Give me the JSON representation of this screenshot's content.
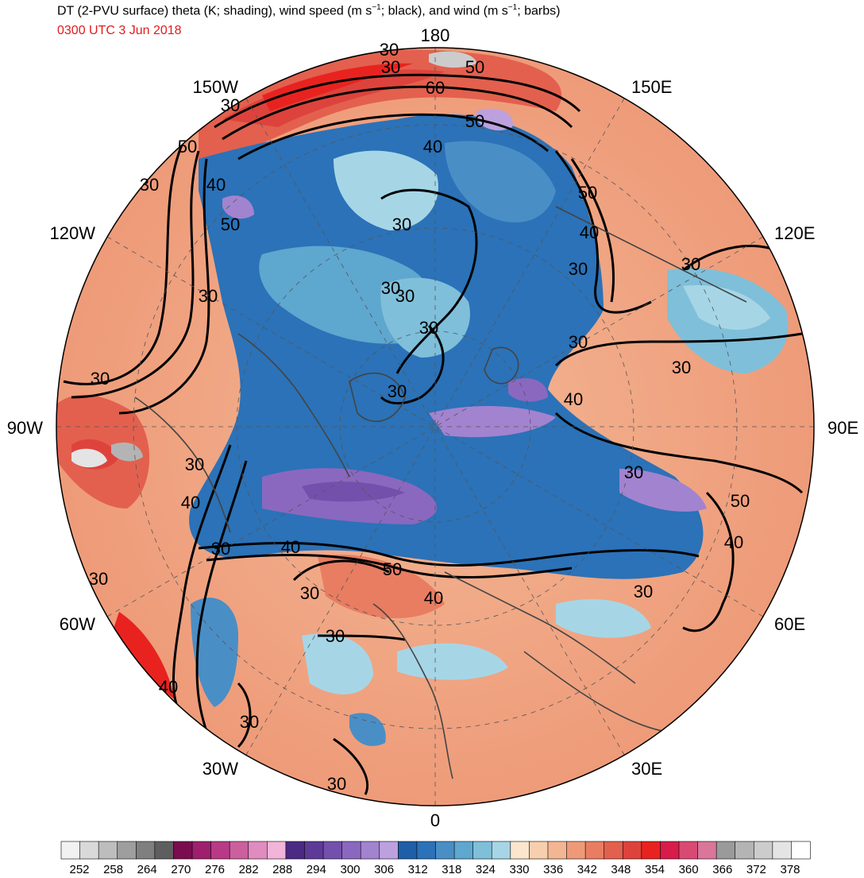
{
  "header": {
    "title_prefix": "DT (2-PVU surface) theta (K; shading), wind speed (m s",
    "title_mid": "; black), and wind (m s",
    "title_suffix": "; barbs)",
    "superscript": "−1",
    "subtitle": "0300 UTC 3 Jun 2018"
  },
  "map": {
    "projection": "north-polar-stereographic",
    "longitude_labels": {
      "top": "180",
      "bottom": "0",
      "left": "90W",
      "right": "90E",
      "upper_left_1": "150W",
      "upper_left_2": "120W",
      "upper_right_1": "150E",
      "upper_right_2": "120E",
      "lower_left_1": "60W",
      "lower_left_2": "30W",
      "lower_right_1": "60E",
      "lower_right_2": "30E"
    },
    "contour_labels": [
      "30",
      "50",
      "60",
      "50",
      "30",
      "50",
      "40",
      "30",
      "30",
      "40",
      "50",
      "30",
      "30",
      "30",
      "30",
      "30",
      "50",
      "40",
      "30",
      "30",
      "30",
      "40",
      "30",
      "30",
      "50",
      "40",
      "30",
      "40",
      "40",
      "50",
      "30",
      "30",
      "40",
      "30",
      "30",
      "30",
      "40",
      "30",
      "30",
      "30",
      "30"
    ],
    "colors": {
      "ocean_blue": "#2b6cb8",
      "teal": "#5aa5c8",
      "light_blue": "#a9d6e5",
      "peach": "#f5b896",
      "red": "#e8302a",
      "purple": "#9a72c8",
      "grid_gray": "#666666"
    }
  },
  "colorbar": {
    "labels": [
      "252",
      "258",
      "264",
      "270",
      "276",
      "282",
      "288",
      "294",
      "300",
      "306",
      "312",
      "318",
      "324",
      "330",
      "336",
      "342",
      "348",
      "354",
      "360",
      "366",
      "372",
      "378"
    ],
    "colors": [
      "#f2f2f2",
      "#d9d9d9",
      "#bdbdbd",
      "#9e9e9e",
      "#7f7f7f",
      "#5e5e5e",
      "#7a0d4f",
      "#9e1f6e",
      "#b83a86",
      "#cc5f9e",
      "#e08cc1",
      "#f2b4d9",
      "#4a2a82",
      "#5e3a98",
      "#7450ad",
      "#8a68bf",
      "#a283cf",
      "#bca1de",
      "#1f5fa8",
      "#2b72b8",
      "#4a8ec6",
      "#5ea7cf",
      "#7fbfda",
      "#a6d6e6",
      "#fbe5cc",
      "#f7cfaf",
      "#f3b693",
      "#ee9a78",
      "#e87d62",
      "#e3604e",
      "#dd433c",
      "#e8231f",
      "#d81c4a",
      "#d84a74",
      "#d9769a",
      "#9a9a9a",
      "#b4b4b4",
      "#cccccc",
      "#e4e4e4",
      "#ffffff"
    ]
  }
}
